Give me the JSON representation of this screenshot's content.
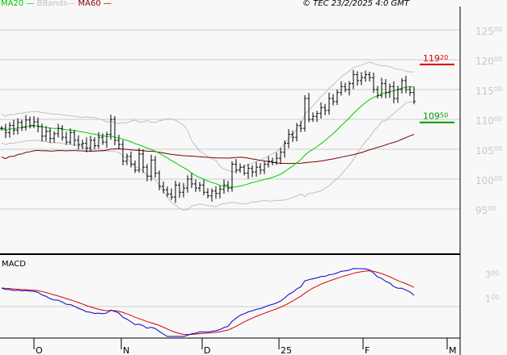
{
  "header": {
    "legend": [
      {
        "label": "MA20",
        "color": "#00cc00"
      },
      {
        "label": "BBands",
        "color": "#c0c0c0"
      },
      {
        "label": "MA60",
        "color": "#800000"
      }
    ],
    "copyright": "© TEC 23/2/2025 4:0 GMT"
  },
  "chart_data": [
    {
      "type": "ohlc",
      "price_axis": {
        "ticks": [
          9500,
          10000,
          10500,
          11000,
          11500,
          12000,
          12500
        ],
        "tick_labels": [
          "9500",
          "10000",
          "10500",
          "11000",
          "11500",
          "12000",
          "12500"
        ]
      },
      "x_ticks": [
        {
          "label": "O",
          "index": 8
        },
        {
          "label": "N",
          "index": 29.6
        },
        {
          "label": "D",
          "index": 49.6
        },
        {
          "label": "25",
          "index": 68.6
        },
        {
          "label": "F",
          "index": 89.4
        },
        {
          "label": "M",
          "index": 110.2
        }
      ],
      "closes": [
        10850,
        10780,
        10900,
        10820,
        10950,
        10870,
        10990,
        10900,
        10960,
        10880,
        10720,
        10800,
        10680,
        10760,
        10850,
        10700,
        10620,
        10780,
        10650,
        10580,
        10600,
        10520,
        10650,
        10560,
        10700,
        10620,
        10750,
        11000,
        10650,
        10580,
        10300,
        10380,
        10250,
        10150,
        10420,
        10200,
        10050,
        10320,
        10100,
        9880,
        9820,
        9750,
        9700,
        9900,
        9780,
        9850,
        10000,
        9920,
        9850,
        9900,
        9780,
        9720,
        9800,
        9760,
        9830,
        9900,
        9850,
        10250,
        10150,
        10200,
        10100,
        10180,
        10120,
        10200,
        10150,
        10250,
        10300,
        10280,
        10350,
        10450,
        10600,
        10750,
        10700,
        10900,
        10850,
        11350,
        11000,
        11050,
        11100,
        11200,
        11150,
        11350,
        11300,
        11450,
        11550,
        11500,
        11600,
        11750,
        11650,
        11700,
        11750,
        11700,
        11500,
        11400,
        11600,
        11450,
        11550,
        11350,
        11500,
        11650,
        11500,
        11450,
        11300
      ],
      "resistance": {
        "value": 11920,
        "label_main": "119",
        "label_dec": "20",
        "color": "#dd0000"
      },
      "support": {
        "value": 10950,
        "label_main": "109",
        "label_dec": "50",
        "color": "#009900"
      },
      "series": [
        {
          "name": "MA20",
          "color": "#00cc00"
        },
        {
          "name": "BBands",
          "color": "#c0c0c0"
        },
        {
          "name": "MA60",
          "color": "#800000"
        }
      ]
    },
    {
      "type": "line",
      "title": "MACD",
      "y_ticks": [
        {
          "value": 100,
          "main": "1",
          "dec": "00"
        },
        {
          "value": 300,
          "main": "3",
          "dec": "00"
        }
      ],
      "series_colors": {
        "macd": "#0000cc",
        "signal": "#dd0000"
      }
    }
  ]
}
